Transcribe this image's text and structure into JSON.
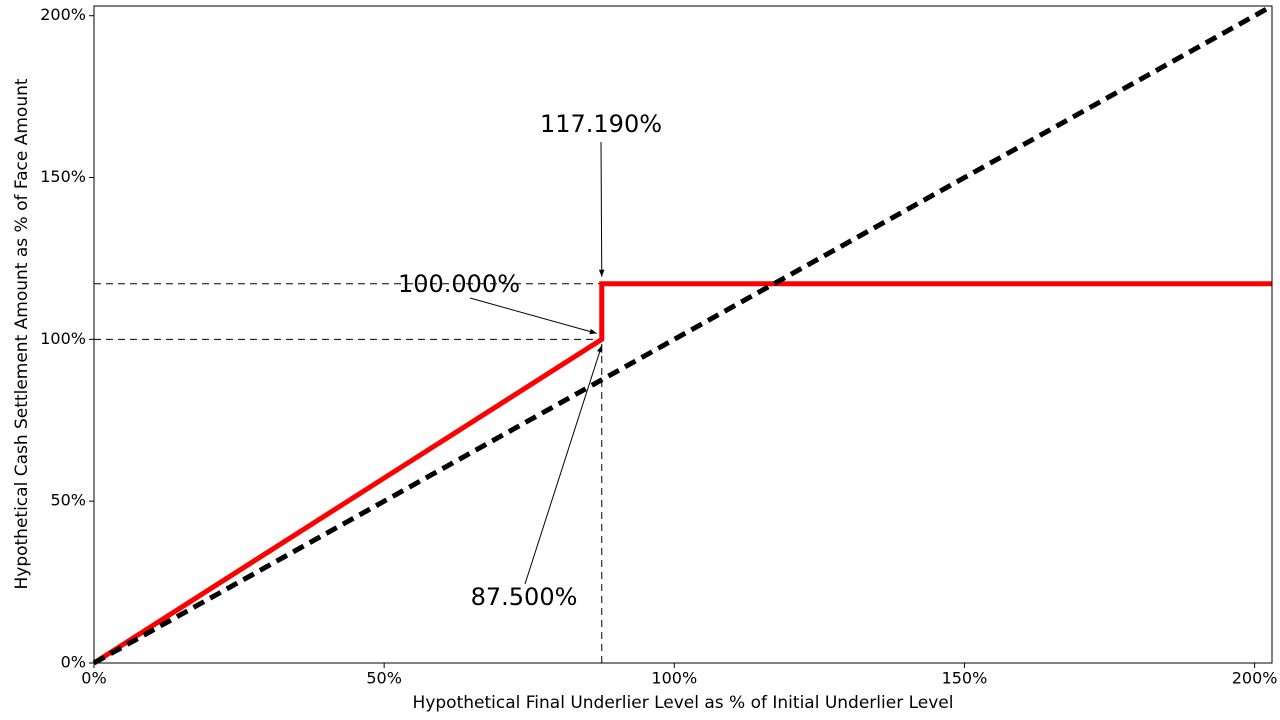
{
  "chart_data": {
    "type": "line",
    "x_label": "Hypothetical Final Underlier Level as % of Initial Underlier Level",
    "y_label": "Hypothetical Cash Settlement Amount as % of Face Amount",
    "xlim": [
      0,
      203
    ],
    "ylim": [
      0,
      203
    ],
    "xticks": [
      {
        "value": 0,
        "label": "0%"
      },
      {
        "value": 50,
        "label": "50%"
      },
      {
        "value": 100,
        "label": "100%"
      },
      {
        "value": 150,
        "label": "150%"
      },
      {
        "value": 200,
        "label": "200%"
      }
    ],
    "yticks": [
      {
        "value": 0,
        "label": "0%"
      },
      {
        "value": 50,
        "label": "50%"
      },
      {
        "value": 100,
        "label": "100%"
      },
      {
        "value": 150,
        "label": "150%"
      },
      {
        "value": 200,
        "label": "200%"
      }
    ],
    "series": [
      {
        "color": "#ff0000",
        "dashed": false,
        "x": [
          0,
          87.5,
          87.5,
          203
        ],
        "values": [
          0,
          100,
          117.19,
          117.19
        ]
      },
      {
        "color": "#000000",
        "dashed": true,
        "x": [
          0,
          203
        ],
        "values": [
          0,
          203
        ]
      }
    ],
    "annotations": [
      {
        "text": "117.190%",
        "x": 87.5,
        "y": 117.19,
        "guide": "horizontal"
      },
      {
        "text": "100.000%",
        "x": 87.5,
        "y": 100,
        "guide": "horizontal"
      },
      {
        "text": "87.500%",
        "x": 87.5,
        "y": 100,
        "guide": "vertical"
      }
    ]
  }
}
